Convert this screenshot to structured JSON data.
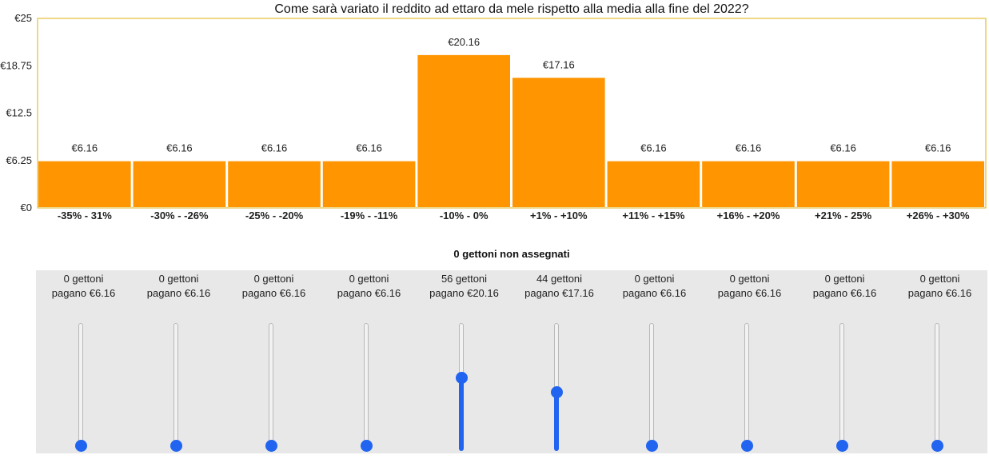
{
  "chart_data": {
    "type": "bar",
    "title": "Come sarà variato il reddito ad ettaro da mele rispetto alla media alla fine del 2022?",
    "categories": [
      "-35% - 31%",
      "-30% - -26%",
      "-25% - -20%",
      "-19% - -11%",
      "-10% - 0%",
      "+1% - +10%",
      "+11% - +15%",
      "+16% - +20%",
      "+21% - 25%",
      "+26% - +30%"
    ],
    "values": [
      6.16,
      6.16,
      6.16,
      6.16,
      20.16,
      17.16,
      6.16,
      6.16,
      6.16,
      6.16
    ],
    "data_labels": [
      "€6.16",
      "€6.16",
      "€6.16",
      "€6.16",
      "€20.16",
      "€17.16",
      "€6.16",
      "€6.16",
      "€6.16",
      "€6.16"
    ],
    "ylim": [
      0,
      25
    ],
    "yticks": [
      0,
      6.25,
      12.5,
      18.75,
      25
    ],
    "ytick_labels": [
      "€0",
      "€6.25",
      "€12.5",
      "€18.75",
      "€25"
    ],
    "bar_color": "#ff9500",
    "frame_color": "#e3be3a",
    "grid": false
  },
  "status": "0 gettoni non assegnati",
  "sliders": [
    {
      "tokens": "0 gettoni",
      "pays": "pagano €6.16",
      "value": 0
    },
    {
      "tokens": "0 gettoni",
      "pays": "pagano €6.16",
      "value": 0
    },
    {
      "tokens": "0 gettoni",
      "pays": "pagano €6.16",
      "value": 0
    },
    {
      "tokens": "0 gettoni",
      "pays": "pagano €6.16",
      "value": 0
    },
    {
      "tokens": "56 gettoni",
      "pays": "pagano €20.16",
      "value": 56
    },
    {
      "tokens": "44 gettoni",
      "pays": "pagano €17.16",
      "value": 44
    },
    {
      "tokens": "0 gettoni",
      "pays": "pagano €6.16",
      "value": 0
    },
    {
      "tokens": "0 gettoni",
      "pays": "pagano €6.16",
      "value": 0
    },
    {
      "tokens": "0 gettoni",
      "pays": "pagano €6.16",
      "value": 0
    },
    {
      "tokens": "0 gettoni",
      "pays": "pagano €6.16",
      "value": 0
    }
  ],
  "slider_max": 100,
  "slider_color": "#2064f0"
}
